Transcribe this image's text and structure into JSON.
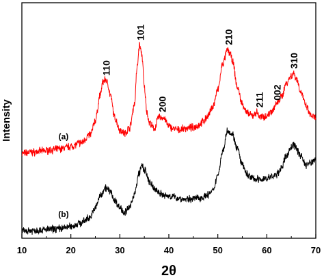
{
  "chart_data": {
    "type": "line",
    "xlabel": "2θ",
    "ylabel": "Intensity",
    "xlim": [
      10,
      70
    ],
    "ylim": [
      0,
      100
    ],
    "x_ticks": [
      10,
      20,
      30,
      40,
      50,
      60,
      70
    ],
    "y_ticks_labeled": false,
    "grid": false,
    "series": [
      {
        "name": "(a)",
        "color": "#ff0000",
        "points": [
          [
            10,
            36
          ],
          [
            12,
            36.5
          ],
          [
            14,
            37
          ],
          [
            16,
            37.5
          ],
          [
            18,
            38
          ],
          [
            20,
            39
          ],
          [
            22,
            40.5
          ],
          [
            24,
            44
          ],
          [
            25,
            50
          ],
          [
            26,
            61
          ],
          [
            26.5,
            66
          ],
          [
            27,
            67.5
          ],
          [
            27.5,
            66
          ],
          [
            28,
            61
          ],
          [
            29,
            51
          ],
          [
            30,
            46
          ],
          [
            31,
            44.5
          ],
          [
            32,
            47
          ],
          [
            33,
            57
          ],
          [
            33.5,
            72
          ],
          [
            34,
            82
          ],
          [
            34.5,
            78
          ],
          [
            35,
            64
          ],
          [
            35.5,
            54
          ],
          [
            36,
            49
          ],
          [
            37,
            46.5
          ],
          [
            38,
            51.5
          ],
          [
            39,
            51
          ],
          [
            40,
            47.5
          ],
          [
            41,
            46.5
          ],
          [
            42,
            46
          ],
          [
            43,
            46.5
          ],
          [
            44,
            46.8
          ],
          [
            45,
            47
          ],
          [
            46,
            48
          ],
          [
            47,
            49.5
          ],
          [
            48,
            52
          ],
          [
            49,
            56
          ],
          [
            50,
            63
          ],
          [
            51,
            74
          ],
          [
            52,
            80
          ],
          [
            52.5,
            78.5
          ],
          [
            53,
            75
          ],
          [
            54,
            64
          ],
          [
            55,
            57
          ],
          [
            56,
            53
          ],
          [
            57,
            52
          ],
          [
            58,
            53.5
          ],
          [
            58.5,
            51.5
          ],
          [
            59,
            51.5
          ],
          [
            60,
            52
          ],
          [
            61,
            54
          ],
          [
            62,
            57
          ],
          [
            63,
            60
          ],
          [
            64,
            66
          ],
          [
            65,
            69
          ],
          [
            65.5,
            70
          ],
          [
            66,
            68
          ],
          [
            67,
            62
          ],
          [
            68,
            56
          ],
          [
            69,
            52
          ],
          [
            70,
            51
          ]
        ]
      },
      {
        "name": "(b)",
        "color": "#000000",
        "points": [
          [
            10,
            3
          ],
          [
            12,
            3.3
          ],
          [
            14,
            3.5
          ],
          [
            16,
            3.8
          ],
          [
            18,
            4.2
          ],
          [
            20,
            5
          ],
          [
            22,
            6.5
          ],
          [
            24,
            9
          ],
          [
            25,
            13
          ],
          [
            26,
            18
          ],
          [
            27,
            21.5
          ],
          [
            28,
            20
          ],
          [
            29,
            16
          ],
          [
            30,
            13
          ],
          [
            31,
            11
          ],
          [
            32,
            13
          ],
          [
            33,
            19
          ],
          [
            34,
            28
          ],
          [
            34.5,
            31
          ],
          [
            35,
            29
          ],
          [
            36,
            24
          ],
          [
            37,
            21
          ],
          [
            38,
            19.5
          ],
          [
            39,
            18
          ],
          [
            40,
            18
          ],
          [
            41,
            17.5
          ],
          [
            42,
            17
          ],
          [
            43,
            16.5
          ],
          [
            44,
            16.5
          ],
          [
            45,
            17
          ],
          [
            46,
            17
          ],
          [
            47,
            17.5
          ],
          [
            48,
            18.5
          ],
          [
            49,
            20
          ],
          [
            50,
            27
          ],
          [
            51,
            37
          ],
          [
            52,
            46
          ],
          [
            53,
            44
          ],
          [
            54,
            38
          ],
          [
            55,
            31
          ],
          [
            56,
            27
          ],
          [
            57,
            25.5
          ],
          [
            58,
            25
          ],
          [
            59,
            25
          ],
          [
            60,
            25.5
          ],
          [
            61,
            26
          ],
          [
            62,
            27
          ],
          [
            63,
            30
          ],
          [
            64,
            35
          ],
          [
            65,
            38.5
          ],
          [
            65.5,
            40
          ],
          [
            66,
            38
          ],
          [
            67,
            35
          ],
          [
            68,
            31
          ],
          [
            69,
            32
          ],
          [
            70,
            34
          ]
        ]
      }
    ],
    "annotations": [
      {
        "text": "110",
        "x": 27.2,
        "y": 69
      },
      {
        "text": "101",
        "x": 34.2,
        "y": 84
      },
      {
        "text": "200",
        "x": 38.7,
        "y": 53.5
      },
      {
        "text": "210",
        "x": 52.2,
        "y": 82
      },
      {
        "text": "211",
        "x": 58.5,
        "y": 55.5
      },
      {
        "text": "002",
        "x": 62.1,
        "y": 58.5
      },
      {
        "text": "310",
        "x": 65.5,
        "y": 72
      }
    ],
    "series_labels": [
      {
        "text": "(a)",
        "x": 18.5,
        "y": 42
      },
      {
        "text": "(b)",
        "x": 18.5,
        "y": 9
      }
    ]
  }
}
